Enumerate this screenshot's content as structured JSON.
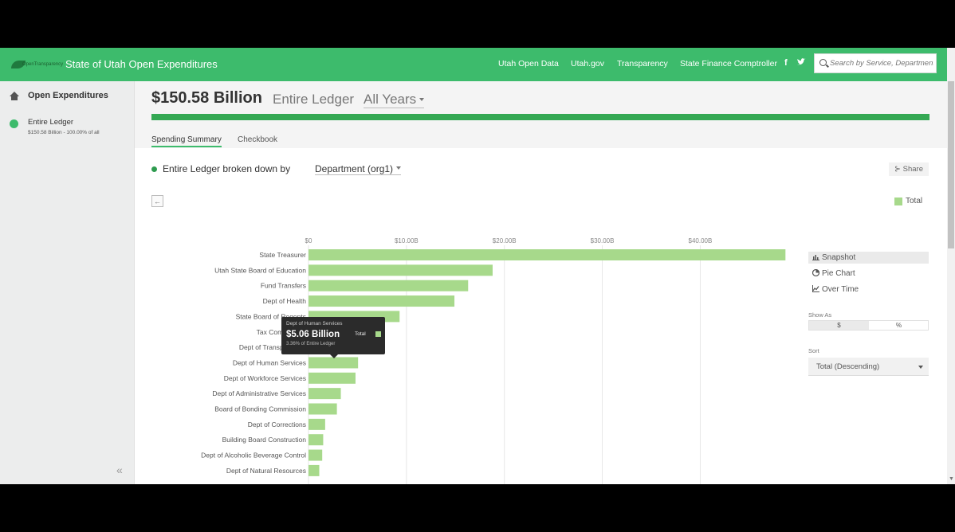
{
  "header": {
    "logo_text": "OpenTransparency",
    "title": "State of Utah Open Expenditures",
    "nav": [
      "Utah Open Data",
      "Utah.gov",
      "Transparency",
      "State Finance Comptroller"
    ],
    "social": {
      "facebook": "f",
      "twitter": "t"
    },
    "search_placeholder": "Search by Service, Department"
  },
  "sidebar": {
    "title": "Open Expenditures",
    "item_label": "Entire Ledger",
    "item_sub": "$150.58 Billion - 100.00% of all",
    "collapse": "«"
  },
  "summary": {
    "amount": "$150.58 Billion",
    "ledger": "Entire Ledger",
    "years": "All Years",
    "progress_fraction": 1.0,
    "tabs": [
      "Spending Summary",
      "Checkbook"
    ],
    "active_tab": 0
  },
  "breakdown": {
    "prefix": "Entire Ledger broken down by",
    "dimension": "Department (org1)",
    "share": "Share",
    "back": "←",
    "legend": "Total"
  },
  "chart_data": {
    "type": "bar",
    "orientation": "horizontal",
    "xlim": [
      0,
      49000000000
    ],
    "ticks": [
      {
        "value": 0,
        "label": "$0"
      },
      {
        "value": 10000000000,
        "label": "$10.00B"
      },
      {
        "value": 20000000000,
        "label": "$20.00B"
      },
      {
        "value": 30000000000,
        "label": "$30.00B"
      },
      {
        "value": 40000000000,
        "label": "$40.00B"
      }
    ],
    "grid": true,
    "series": [
      {
        "name": "Total",
        "color": "#a7d98b"
      }
    ],
    "categories": [
      "State Treasurer",
      "Utah State Board of Education",
      "Fund Transfers",
      "Dept of Health",
      "State Board of Regents",
      "Tax Commission",
      "Dept of Transportation",
      "Dept of Human Services",
      "Dept of Workforce Services",
      "Dept of Administrative Services",
      "Board of Bonding Commission",
      "Dept of Corrections",
      "Building Board Construction",
      "Dept of Alcoholic Beverage Control",
      "Dept of Natural Resources"
    ],
    "values": [
      48700000000,
      18800000000,
      16300000000,
      14900000000,
      9300000000,
      7800000000,
      6500000000,
      5060000000,
      4800000000,
      3300000000,
      2900000000,
      1700000000,
      1500000000,
      1400000000,
      1100000000
    ]
  },
  "tooltip": {
    "title": "Dept of Human Services",
    "value": "$5.06 Billion",
    "series": "Total",
    "percent": "3.36% of Entire Ledger"
  },
  "right_panel": {
    "views": [
      "Snapshot",
      "Pie Chart",
      "Over Time"
    ],
    "active_view": 0,
    "show_as_label": "Show As",
    "show_as_options": [
      "$",
      "%"
    ],
    "show_as_active": 0,
    "sort_label": "Sort",
    "sort_value": "Total (Descending)"
  }
}
